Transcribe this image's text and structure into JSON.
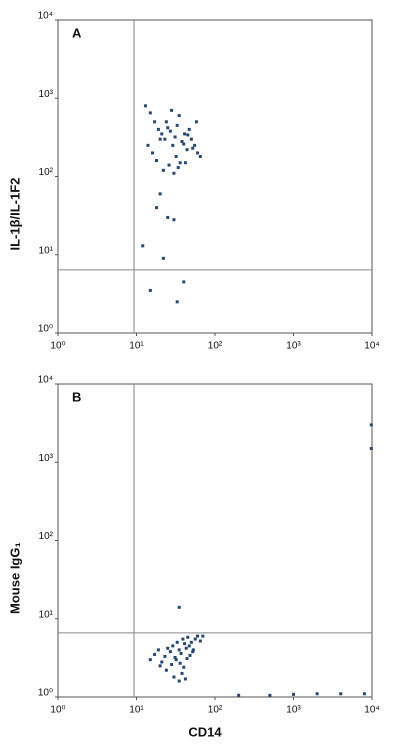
{
  "chart_data": [
    {
      "type": "scatter",
      "panel": "A",
      "ylabel": "IL-1β/IL-1F2",
      "xscale": "log",
      "yscale": "log",
      "xlim": [
        1,
        10000
      ],
      "ylim": [
        1,
        10000
      ],
      "xticks": [
        {
          "value": 1,
          "label": "10⁰"
        },
        {
          "value": 10,
          "label": "10¹"
        },
        {
          "value": 100,
          "label": "10²"
        },
        {
          "value": 1000,
          "label": "10³"
        },
        {
          "value": 10000,
          "label": "10⁴"
        }
      ],
      "yticks": [
        {
          "value": 1,
          "label": "10⁰"
        },
        {
          "value": 10,
          "label": "10¹"
        },
        {
          "value": 100,
          "label": "10²"
        },
        {
          "value": 1000,
          "label": "10³"
        },
        {
          "value": 10000,
          "label": "10⁴"
        }
      ],
      "quadrant": {
        "x": 9.3,
        "y": 6.4
      },
      "color": "#27476b",
      "x": [
        13,
        15,
        17,
        19,
        21,
        23,
        25,
        27,
        29,
        31,
        33,
        35,
        38,
        41,
        44,
        47,
        50,
        55,
        60,
        65,
        14,
        16,
        18,
        20,
        24,
        28,
        32,
        36,
        40,
        45,
        52,
        58,
        22,
        26,
        30,
        34,
        42,
        20,
        22,
        15,
        33,
        40,
        12,
        25,
        18,
        30
      ],
      "values": [
        800,
        650,
        500,
        400,
        350,
        300,
        420,
        380,
        250,
        320,
        450,
        600,
        280,
        350,
        220,
        400,
        300,
        250,
        200,
        180,
        250,
        200,
        160,
        300,
        500,
        700,
        180,
        150,
        260,
        340,
        230,
        500,
        120,
        140,
        110,
        130,
        150,
        60,
        9,
        3.5,
        2.5,
        4.5,
        13,
        30,
        40,
        28
      ]
    },
    {
      "type": "scatter",
      "panel": "B",
      "ylabel": "Mouse IgG₁",
      "xlabel": "CD14",
      "xscale": "log",
      "yscale": "log",
      "xlim": [
        1,
        10000
      ],
      "ylim": [
        1,
        10000
      ],
      "xticks": [
        {
          "value": 1,
          "label": "10⁰"
        },
        {
          "value": 10,
          "label": "10¹"
        },
        {
          "value": 100,
          "label": "10²"
        },
        {
          "value": 1000,
          "label": "10³"
        },
        {
          "value": 10000,
          "label": "10⁴"
        }
      ],
      "yticks": [
        {
          "value": 1,
          "label": "10⁰"
        },
        {
          "value": 10,
          "label": "10¹"
        },
        {
          "value": 100,
          "label": "10²"
        },
        {
          "value": 1000,
          "label": "10³"
        },
        {
          "value": 10000,
          "label": "10⁴"
        }
      ],
      "quadrant": {
        "x": 9.3,
        "y": 6.6
      },
      "color": "#27476b",
      "x": [
        15,
        17,
        19,
        21,
        23,
        25,
        27,
        29,
        31,
        33,
        35,
        37,
        39,
        41,
        43,
        45,
        47,
        50,
        53,
        56,
        60,
        65,
        70,
        20,
        24,
        28,
        32,
        36,
        40,
        44,
        48,
        52,
        30,
        35,
        38,
        42,
        35,
        200,
        500,
        1000,
        2000,
        4000,
        8000,
        9800,
        9800
      ],
      "values": [
        3,
        3.5,
        4,
        2.8,
        3.3,
        4.2,
        3.8,
        4.5,
        3.2,
        5,
        4,
        3.6,
        5.5,
        4.8,
        4.2,
        5.8,
        4.5,
        5,
        4,
        5.5,
        6,
        5.2,
        6,
        2.5,
        2.2,
        2.6,
        3,
        2.7,
        2.4,
        3.1,
        3.4,
        3.8,
        1.8,
        1.6,
        2,
        1.7,
        14,
        1.05,
        1.05,
        1.08,
        1.1,
        1.1,
        1.1,
        3000,
        1500
      ]
    }
  ]
}
